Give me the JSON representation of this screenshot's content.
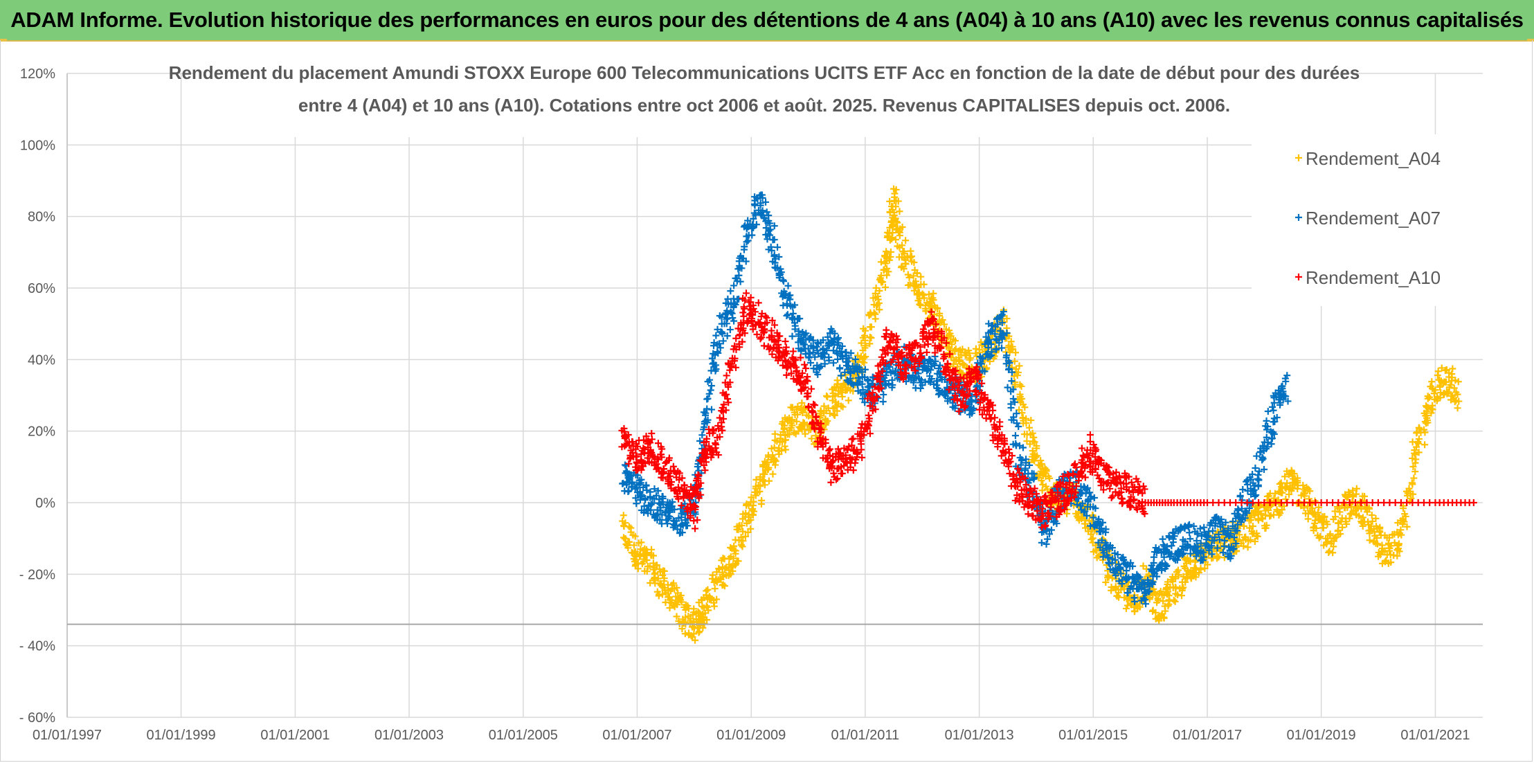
{
  "banner": {
    "title": "ADAM Informe. Evolution historique des performances en euros pour des détentions de 4 ans (A04) à 10 ans (A10) avec les revenus connus capitalisés"
  },
  "colors": {
    "banner_bg": "#7ecb7a",
    "A04": "#ffc000",
    "A07": "#0070c0",
    "A10": "#ff0000",
    "grid": "#d9d9d9",
    "text": "#595959"
  },
  "chart_data": {
    "type": "scatter",
    "title_line1": "Rendement du placement Amundi STOXX Europe 600 Telecommunications UCITS ETF Acc en fonction de la date de début pour des durées",
    "title_line2": "entre 4 (A04) et 10 ans (A10). Cotations entre oct 2006 et août. 2025. Revenus CAPITALISES depuis oct. 2006.",
    "xlabel": "",
    "ylabel": "",
    "xlim": [
      "1997-01-01",
      "2021-11-01"
    ],
    "ylim": [
      -60,
      120
    ],
    "y_ticks": [
      120,
      100,
      80,
      60,
      40,
      20,
      0,
      -20,
      -40,
      -60
    ],
    "y_tick_labels": [
      "120%",
      "100%",
      "80%",
      "60%",
      "40%",
      "20%",
      "0%",
      "- 20%",
      "- 40%",
      "- 60%"
    ],
    "x_tick_labels": [
      "01/01/1997",
      "01/01/1999",
      "01/01/2001",
      "01/01/2003",
      "01/01/2005",
      "01/01/2007",
      "01/01/2009",
      "01/01/2011",
      "01/01/2013",
      "01/01/2015",
      "01/01/2017",
      "01/01/2019",
      "01/01/2021"
    ],
    "x_ticks": [
      "1997-01-01",
      "1999-01-01",
      "2001-01-01",
      "2003-01-01",
      "2005-01-01",
      "2007-01-01",
      "2009-01-01",
      "2011-01-01",
      "2013-01-01",
      "2015-01-01",
      "2017-01-01",
      "2019-01-01",
      "2021-01-01"
    ],
    "grid": true,
    "marker": "+",
    "legend_position": "top-right",
    "series": [
      {
        "name": "Rendement_A04",
        "color": "#ffc000",
        "x": [
          "2006-10",
          "2007-01",
          "2007-04",
          "2007-07",
          "2007-10",
          "2008-01",
          "2008-03",
          "2008-06",
          "2008-09",
          "2008-12",
          "2009-03",
          "2009-06",
          "2009-09",
          "2009-12",
          "2010-03",
          "2010-06",
          "2010-09",
          "2010-12",
          "2011-03",
          "2011-06",
          "2011-07",
          "2011-09",
          "2011-12",
          "2012-03",
          "2012-06",
          "2012-09",
          "2012-12",
          "2013-03",
          "2013-06",
          "2013-09",
          "2013-12",
          "2014-03",
          "2014-06",
          "2014-09",
          "2014-12",
          "2015-03",
          "2015-06",
          "2015-09",
          "2015-12",
          "2016-03",
          "2016-06",
          "2016-09",
          "2016-12",
          "2017-03",
          "2017-06",
          "2017-09",
          "2017-12",
          "2018-03",
          "2018-06",
          "2018-09",
          "2018-12",
          "2019-03",
          "2019-06",
          "2019-09",
          "2019-12",
          "2020-03",
          "2020-06",
          "2020-09",
          "2020-12",
          "2021-03",
          "2021-06"
        ],
        "y": [
          -8,
          -14,
          -18,
          -24,
          -30,
          -35,
          -30,
          -22,
          -15,
          -5,
          5,
          15,
          22,
          25,
          20,
          28,
          32,
          38,
          55,
          70,
          85,
          70,
          60,
          55,
          45,
          40,
          38,
          42,
          50,
          35,
          15,
          5,
          0,
          2,
          -5,
          -15,
          -22,
          -28,
          -22,
          -30,
          -25,
          -18,
          -15,
          -12,
          -10,
          -8,
          -5,
          0,
          5,
          3,
          -5,
          -10,
          -2,
          0,
          -8,
          -15,
          -8,
          15,
          28,
          35,
          30
        ]
      },
      {
        "name": "Rendement_A07",
        "color": "#0070c0",
        "x": [
          "2006-10",
          "2007-01",
          "2007-04",
          "2007-07",
          "2007-10",
          "2008-01",
          "2008-03",
          "2008-06",
          "2008-09",
          "2008-12",
          "2009-03",
          "2009-06",
          "2009-09",
          "2009-12",
          "2010-03",
          "2010-06",
          "2010-09",
          "2010-12",
          "2011-03",
          "2011-06",
          "2011-09",
          "2011-12",
          "2012-03",
          "2012-06",
          "2012-09",
          "2012-12",
          "2013-03",
          "2013-06",
          "2013-09",
          "2013-12",
          "2014-03",
          "2014-06",
          "2014-09",
          "2014-12",
          "2015-03",
          "2015-06",
          "2015-09",
          "2015-12",
          "2016-03",
          "2016-06",
          "2016-09",
          "2016-12",
          "2017-03",
          "2017-06",
          "2017-09",
          "2017-12",
          "2018-03",
          "2018-06"
        ],
        "y": [
          8,
          3,
          0,
          -2,
          -5,
          0,
          20,
          45,
          55,
          75,
          85,
          70,
          55,
          45,
          40,
          45,
          38,
          35,
          30,
          35,
          40,
          35,
          38,
          32,
          30,
          28,
          45,
          50,
          15,
          5,
          -8,
          2,
          5,
          0,
          -10,
          -18,
          -22,
          -25,
          -15,
          -12,
          -10,
          -12,
          -8,
          -12,
          0,
          10,
          25,
          33
        ]
      },
      {
        "name": "Rendement_A10",
        "color": "#ff0000",
        "x": [
          "2006-10",
          "2007-01",
          "2007-04",
          "2007-07",
          "2007-10",
          "2008-01",
          "2008-03",
          "2008-06",
          "2008-09",
          "2008-12",
          "2009-03",
          "2009-06",
          "2009-09",
          "2009-12",
          "2010-03",
          "2010-06",
          "2010-09",
          "2010-12",
          "2011-03",
          "2011-06",
          "2011-09",
          "2011-12",
          "2012-03",
          "2012-06",
          "2012-09",
          "2012-12",
          "2013-03",
          "2013-06",
          "2013-09",
          "2013-12",
          "2014-03",
          "2014-06",
          "2014-09",
          "2014-12",
          "2015-03",
          "2015-06",
          "2015-09",
          "2015-12",
          "2016-06",
          "2017-01",
          "2018-01",
          "2019-01",
          "2020-01",
          "2021-01",
          "2021-10"
        ],
        "y": [
          18,
          12,
          16,
          10,
          5,
          -3,
          15,
          18,
          40,
          55,
          50,
          45,
          40,
          35,
          20,
          10,
          12,
          15,
          30,
          45,
          38,
          42,
          50,
          40,
          30,
          35,
          25,
          15,
          5,
          0,
          -3,
          2,
          5,
          15,
          8,
          5,
          3,
          0,
          0,
          0,
          0,
          0,
          0,
          0,
          0
        ]
      }
    ]
  }
}
